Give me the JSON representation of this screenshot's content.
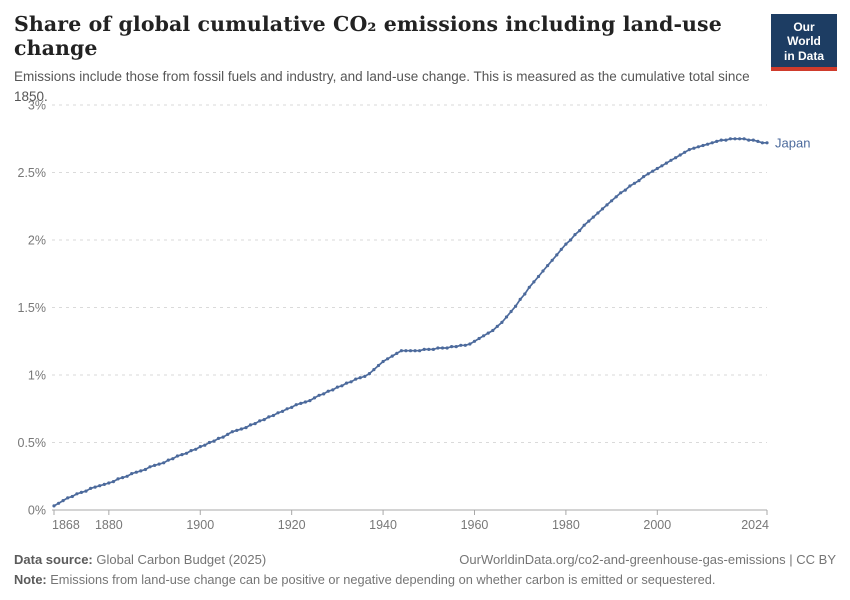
{
  "header": {
    "title": "Share of global cumulative CO₂ emissions including land-use change",
    "subtitle": "Emissions include those from fossil fuels and industry, and land-use change. This is measured as the cumulative total since 1850.",
    "logo": {
      "line1": "Our World",
      "line2": "in Data",
      "bg_color": "#1d3d63",
      "accent_color": "#cf3b2c"
    }
  },
  "chart_data": {
    "type": "line",
    "title": "Share of global cumulative CO₂ emissions including land-use change",
    "series": [
      {
        "name": "Japan",
        "color": "#4C6A9C",
        "year_start": 1868,
        "year_step": 1,
        "year_end": 2024,
        "values": [
          0.03,
          0.05,
          0.07,
          0.09,
          0.1,
          0.12,
          0.13,
          0.14,
          0.16,
          0.17,
          0.18,
          0.19,
          0.2,
          0.21,
          0.23,
          0.24,
          0.25,
          0.27,
          0.28,
          0.29,
          0.3,
          0.32,
          0.33,
          0.34,
          0.35,
          0.37,
          0.38,
          0.4,
          0.41,
          0.42,
          0.44,
          0.45,
          0.47,
          0.48,
          0.5,
          0.51,
          0.53,
          0.54,
          0.56,
          0.58,
          0.59,
          0.6,
          0.61,
          0.63,
          0.64,
          0.66,
          0.67,
          0.69,
          0.7,
          0.72,
          0.73,
          0.75,
          0.76,
          0.78,
          0.79,
          0.8,
          0.81,
          0.83,
          0.85,
          0.86,
          0.88,
          0.89,
          0.91,
          0.92,
          0.94,
          0.95,
          0.97,
          0.98,
          0.99,
          1.01,
          1.04,
          1.07,
          1.1,
          1.12,
          1.14,
          1.16,
          1.18,
          1.18,
          1.18,
          1.18,
          1.18,
          1.19,
          1.19,
          1.19,
          1.2,
          1.2,
          1.2,
          1.21,
          1.21,
          1.22,
          1.22,
          1.23,
          1.25,
          1.27,
          1.29,
          1.31,
          1.33,
          1.36,
          1.39,
          1.43,
          1.47,
          1.51,
          1.56,
          1.6,
          1.65,
          1.69,
          1.73,
          1.77,
          1.81,
          1.85,
          1.89,
          1.93,
          1.97,
          2.0,
          2.04,
          2.07,
          2.11,
          2.14,
          2.17,
          2.2,
          2.23,
          2.26,
          2.29,
          2.32,
          2.35,
          2.37,
          2.4,
          2.42,
          2.44,
          2.47,
          2.49,
          2.51,
          2.53,
          2.55,
          2.57,
          2.59,
          2.61,
          2.63,
          2.65,
          2.67,
          2.68,
          2.69,
          2.7,
          2.71,
          2.72,
          2.73,
          2.74,
          2.74,
          2.75,
          2.75,
          2.75,
          2.75,
          2.74,
          2.74,
          2.73,
          2.72,
          2.72
        ]
      }
    ],
    "unit": "%",
    "ylim": [
      0,
      3
    ],
    "yticks": [
      0,
      0.5,
      1,
      1.5,
      2,
      2.5,
      3
    ],
    "ytick_labels": [
      "0%",
      "0.5%",
      "1%",
      "1.5%",
      "2%",
      "2.5%",
      "3%"
    ],
    "xticks": [
      1868,
      1880,
      1900,
      1920,
      1940,
      1960,
      1980,
      2000,
      2024
    ],
    "grid": "horizontal-dashed",
    "legend_position": "end-of-line-label",
    "gridline_color": "#dadada",
    "axis_color": "#a8a8a8",
    "tick_label_color": "#787878",
    "markers": "circle-every-year"
  },
  "footer": {
    "source_label": "Data source:",
    "source_value": " Global Carbon Budget (2025)",
    "link": "OurWorldinData.org/co2-and-greenhouse-gas-emissions | CC BY",
    "note_label": "Note:",
    "note_value": " Emissions from land-use change can be positive or negative depending on whether carbon is emitted or sequestered."
  }
}
